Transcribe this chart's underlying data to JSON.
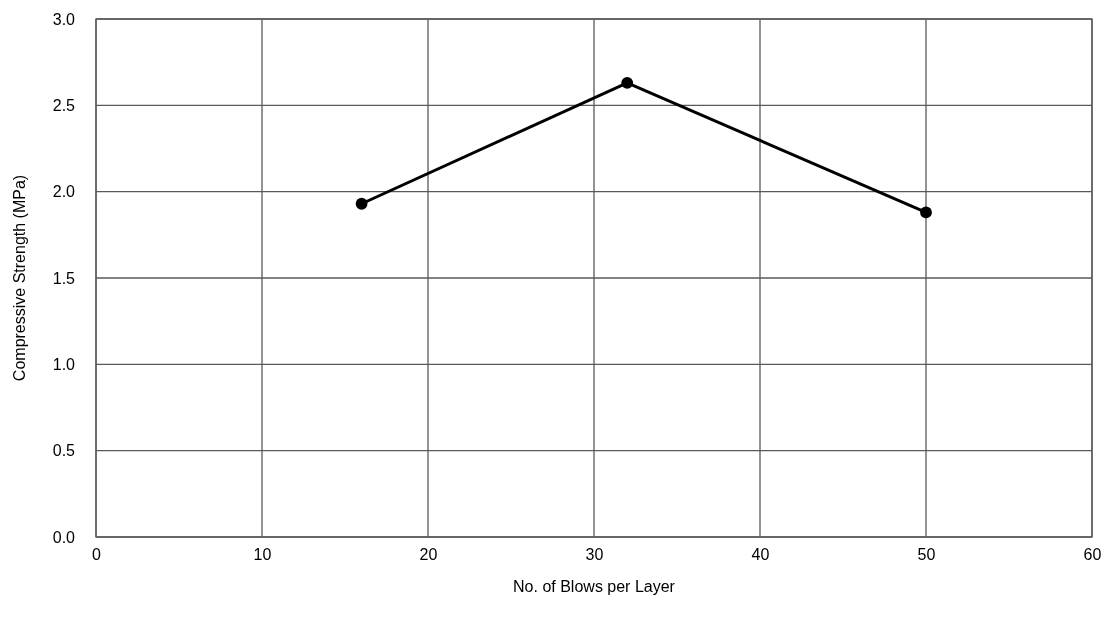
{
  "chart_data": {
    "type": "line",
    "xlabel": "No. of Blows per Layer",
    "ylabel": "Compressive Strength (MPa)",
    "x": [
      16,
      32,
      50
    ],
    "series": [
      {
        "color": "#000000",
        "values": [
          1.93,
          2.63,
          1.88
        ]
      }
    ],
    "xlim": [
      0,
      60
    ],
    "xticks": [
      0,
      10,
      20,
      30,
      40,
      50,
      60
    ],
    "ylim": [
      0,
      3
    ],
    "yticks": [
      {
        "value": 0,
        "label": "0.0"
      },
      {
        "value": 0.5,
        "label": "0.5"
      },
      {
        "value": 1,
        "label": "1.0"
      },
      {
        "value": 1.5,
        "label": "1.5"
      },
      {
        "value": 2,
        "label": "2.0"
      },
      {
        "value": 2.5,
        "label": "2.5"
      },
      {
        "value": 3,
        "label": "3.0"
      }
    ],
    "grid": true,
    "marker": "circle",
    "line_style": "solid"
  }
}
